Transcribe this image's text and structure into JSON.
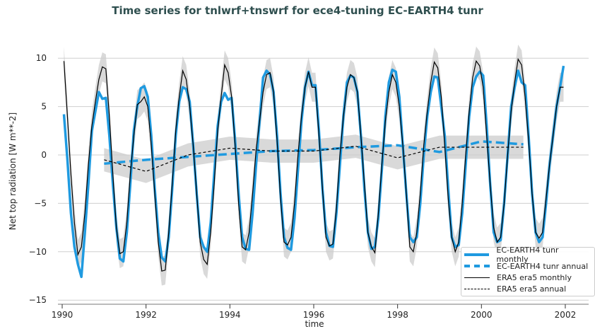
{
  "chart_data": {
    "type": "line",
    "title": "Time series for tnlwrf+tnswrf for ece4-tuning EC-EARTH4 tunr",
    "xlabel": "time",
    "ylabel": "Net top radiation [W m**-2]",
    "xlim": [
      1989.8,
      2002.5
    ],
    "ylim": [
      -15,
      12
    ],
    "xticks": [
      "1990",
      "1992",
      "1994",
      "1996",
      "1998",
      "2000",
      "2002"
    ],
    "yticks": [
      "10",
      "5",
      "0",
      "−5",
      "−10",
      "−15"
    ],
    "grid": "horizontal",
    "legend_position": "bottom-right",
    "colors": {
      "model": "#1f9ae0",
      "obs": "#000000",
      "band": "#cccccc",
      "title": "#2f4f4f"
    },
    "monthly_start": 1990,
    "annual_years": [
      1991,
      1992,
      1993,
      1994,
      1995,
      1996,
      1997,
      1998,
      1999,
      2000,
      2001
    ],
    "series": [
      {
        "name": "EC-EARTH4 tunr monthly",
        "style": "solid-thick",
        "values": [
          4.2,
          -0.5,
          -6.0,
          -9.5,
          -11.3,
          -12.6,
          -8.0,
          -3.0,
          2.5,
          4.5,
          6.5,
          5.8,
          5.9,
          2.0,
          -3.0,
          -7.5,
          -10.7,
          -11.0,
          -8.0,
          -3.0,
          2.5,
          5.0,
          6.9,
          7.1,
          6.0,
          2.0,
          -3.5,
          -8.0,
          -10.6,
          -11.0,
          -8.5,
          -3.5,
          2.0,
          5.5,
          7.0,
          6.8,
          5.5,
          1.0,
          -4.0,
          -8.5,
          -9.5,
          -10.0,
          -7.0,
          -2.0,
          3.0,
          5.5,
          6.4,
          5.7,
          5.9,
          1.5,
          -4.0,
          -8.5,
          -9.7,
          -9.8,
          -6.0,
          -1.0,
          3.5,
          8.0,
          8.7,
          8.3,
          6.5,
          2.0,
          -4.0,
          -8.5,
          -9.6,
          -9.8,
          -6.5,
          -1.5,
          3.5,
          7.0,
          8.6,
          7.2,
          7.2,
          2.5,
          -3.5,
          -8.0,
          -9.4,
          -9.5,
          -6.0,
          -1.0,
          4.0,
          7.5,
          8.2,
          8.0,
          6.5,
          2.0,
          -3.5,
          -8.0,
          -9.7,
          -9.5,
          -6.5,
          -1.5,
          4.0,
          7.5,
          8.8,
          8.6,
          6.0,
          1.0,
          -4.0,
          -8.5,
          -9.0,
          -8.5,
          -5.0,
          0.0,
          4.0,
          6.5,
          8.1,
          8.0,
          5.0,
          2.0,
          -3.5,
          -8.5,
          -9.5,
          -9.3,
          -6.0,
          -1.0,
          4.0,
          7.0,
          8.1,
          8.6,
          8.2,
          3.0,
          -3.0,
          -8.0,
          -9.0,
          -8.8,
          -5.0,
          0.0,
          5.0,
          7.0,
          8.7,
          7.5,
          7.2,
          2.0,
          -4.0,
          -8.0,
          -9.0,
          -8.5,
          -5.0,
          -1.0,
          2.0,
          5.0,
          7.0,
          9.2
        ]
      },
      {
        "name": "EC-EARTH4 tunr annual",
        "style": "dashed-thick",
        "values": [
          -0.9,
          -0.5,
          -0.2,
          0.1,
          0.4,
          0.5,
          0.8,
          1.0,
          0.3,
          1.4,
          1.1
        ]
      },
      {
        "name": "ERA5 era5 monthly",
        "style": "solid-thin",
        "spread": 1.5,
        "values": [
          9.7,
          4.0,
          -2.0,
          -7.0,
          -10.3,
          -9.5,
          -6.0,
          -1.0,
          3.0,
          5.5,
          7.8,
          9.1,
          8.9,
          4.0,
          -2.0,
          -7.5,
          -10.2,
          -10.0,
          -7.0,
          -2.0,
          2.0,
          5.2,
          5.5,
          6.0,
          5.0,
          1.0,
          -4.0,
          -9.0,
          -12.0,
          -11.9,
          -8.0,
          -3.0,
          2.5,
          6.0,
          8.7,
          7.8,
          5.0,
          1.0,
          -4.0,
          -9.0,
          -10.8,
          -11.3,
          -8.0,
          -3.0,
          2.5,
          6.0,
          9.3,
          8.5,
          6.0,
          1.0,
          -5.0,
          -9.5,
          -9.8,
          -8.0,
          -4.0,
          0.5,
          3.5,
          6.5,
          8.3,
          8.5,
          6.5,
          1.5,
          -4.5,
          -9.0,
          -9.3,
          -8.5,
          -5.0,
          0.0,
          4.0,
          7.0,
          8.6,
          7.0,
          7.0,
          2.0,
          -3.5,
          -8.5,
          -9.4,
          -9.2,
          -5.5,
          0.0,
          4.0,
          7.0,
          8.3,
          8.0,
          6.5,
          2.0,
          -3.0,
          -8.0,
          -9.5,
          -10.1,
          -6.0,
          -1.0,
          3.5,
          6.5,
          8.3,
          7.5,
          5.0,
          1.0,
          -4.0,
          -9.5,
          -10.0,
          -8.0,
          -4.0,
          1.0,
          4.5,
          7.5,
          9.6,
          9.0,
          6.0,
          1.0,
          -4.5,
          -8.5,
          -10.0,
          -9.0,
          -5.0,
          0.0,
          4.5,
          8.0,
          9.7,
          9.2,
          7.0,
          2.0,
          -3.0,
          -7.5,
          -9.0,
          -8.5,
          -5.0,
          0.0,
          4.5,
          7.5,
          9.9,
          9.3,
          6.0,
          1.5,
          -4.0,
          -8.0,
          -8.6,
          -8.0,
          -4.5,
          -1.0,
          2.0,
          5.0,
          7.0,
          7.0
        ]
      },
      {
        "name": "ERA5 era5 annual",
        "style": "dashed-thin",
        "spread": 1.2,
        "values": [
          -0.5,
          -1.7,
          0.0,
          0.7,
          0.4,
          0.4,
          0.9,
          -0.3,
          0.8,
          0.8,
          0.8
        ]
      }
    ]
  }
}
